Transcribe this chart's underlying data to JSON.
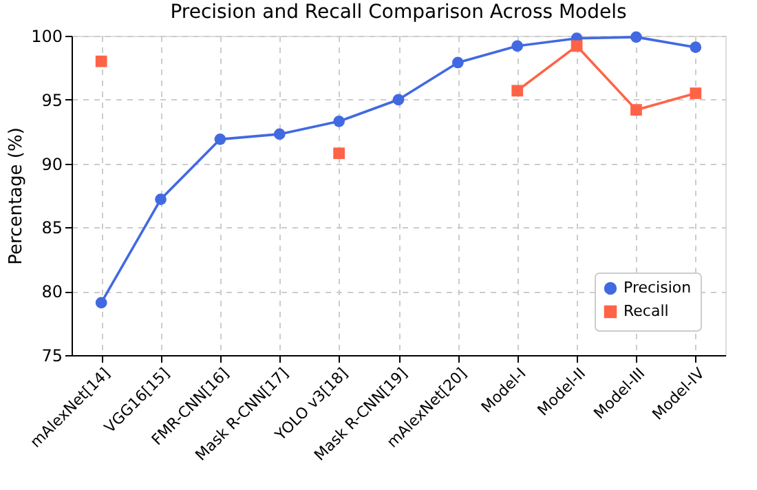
{
  "chart_data": {
    "type": "line",
    "title": "Precision and Recall Comparison Across Models",
    "ylabel": "Percentage (%)",
    "categories": [
      "mAlexNet[14]",
      "VGG16[15]",
      "FMR-CNN[16]",
      "Mask R-CNN[17]",
      "YOLO v3[18]",
      "Mask R-CNN[19]",
      "mAlexNet[20]",
      "Model-I",
      "Model-II",
      "Model-III",
      "Model-IV"
    ],
    "series": [
      {
        "name": "Precision",
        "color": "#4169e1",
        "marker": "circle",
        "values": [
          79.1,
          87.2,
          91.9,
          92.3,
          93.3,
          95.0,
          97.9,
          99.2,
          99.8,
          99.9,
          99.1
        ]
      },
      {
        "name": "Recall",
        "color": "#ff6347",
        "marker": "square",
        "values": [
          98.0,
          null,
          null,
          null,
          90.8,
          null,
          null,
          95.7,
          99.2,
          94.2,
          95.5
        ]
      }
    ],
    "ylim": [
      75,
      100
    ],
    "yticks": [
      75,
      80,
      85,
      90,
      95,
      100
    ],
    "grid": true,
    "legend": "bottom right",
    "line_style": "solid"
  }
}
